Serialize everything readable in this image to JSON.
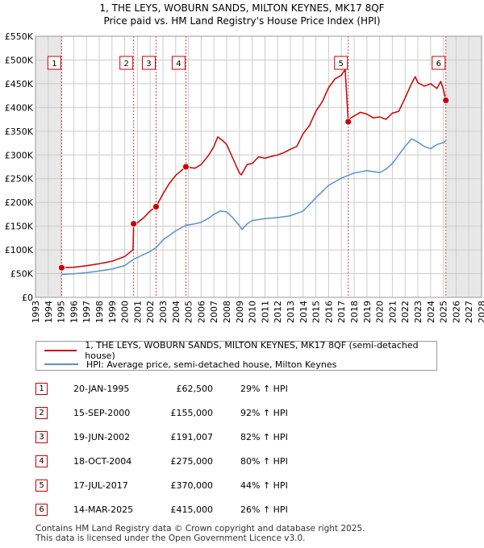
{
  "title_line1": "1, THE LEYS, WOBURN SANDS, MILTON KEYNES, MK17 8QF",
  "title_line2": "Price paid vs. HM Land Registry's House Price Index (HPI)",
  "chart_data": {
    "type": "line",
    "title": "Price paid vs. HM Land Registry's House Price Index (HPI)",
    "xlabel": "",
    "ylabel": "",
    "xlim": [
      1993,
      2028
    ],
    "ylim": [
      0,
      550000
    ],
    "y_ticks": [
      0,
      50000,
      100000,
      150000,
      200000,
      250000,
      300000,
      350000,
      400000,
      450000,
      500000,
      550000
    ],
    "y_tick_labels": [
      "£0",
      "£50K",
      "£100K",
      "£150K",
      "£200K",
      "£250K",
      "£300K",
      "£350K",
      "£400K",
      "£450K",
      "£500K",
      "£550K"
    ],
    "x_ticks": [
      1993,
      1994,
      1995,
      1996,
      1997,
      1998,
      1999,
      2000,
      2001,
      2002,
      2003,
      2004,
      2005,
      2006,
      2007,
      2008,
      2009,
      2010,
      2011,
      2012,
      2013,
      2014,
      2015,
      2016,
      2017,
      2018,
      2019,
      2020,
      2021,
      2022,
      2023,
      2024,
      2025,
      2026,
      2027,
      2028
    ],
    "grid": true,
    "shaded_ranges": [
      [
        1993,
        1995.05
      ],
      [
        2025.2,
        2028
      ]
    ],
    "series": [
      {
        "name": "1, THE LEYS, WOBURN SANDS, MILTON KEYNES, MK17 8QF (semi-detached house)",
        "color": "#cc0000",
        "x": [
          1995.05,
          1996,
          1997,
          1998,
          1999,
          2000,
          2000.65,
          2000.7,
          2001,
          2001.5,
          2002,
          2002.46,
          2003,
          2003.5,
          2004,
          2004.8,
          2005.5,
          2006,
          2006.6,
          2007,
          2007.3,
          2007.7,
          2008,
          2008.5,
          2009,
          2009.15,
          2009.6,
          2010,
          2010.5,
          2011,
          2011.5,
          2012,
          2012.5,
          2013,
          2013.5,
          2014,
          2014.5,
          2015,
          2015.5,
          2016,
          2016.5,
          2017,
          2017.3,
          2017.54,
          2017.7,
          2018,
          2018.5,
          2019,
          2019.5,
          2020,
          2020.5,
          2021,
          2021.5,
          2022,
          2022.5,
          2022.8,
          2023,
          2023.5,
          2024,
          2024.5,
          2024.8,
          2025,
          2025.2
        ],
        "y": [
          62500,
          63500,
          66500,
          71000,
          76000,
          86000,
          100000,
          155000,
          157000,
          168000,
          182000,
          191007,
          218000,
          240000,
          257000,
          275000,
          272000,
          280000,
          300000,
          318000,
          338000,
          330000,
          322000,
          292000,
          262000,
          258000,
          280000,
          282000,
          296000,
          293000,
          297000,
          300000,
          305000,
          312000,
          318000,
          345000,
          362000,
          392000,
          412000,
          442000,
          460000,
          468000,
          480000,
          370000,
          377000,
          382000,
          390000,
          386000,
          378000,
          380000,
          375000,
          388000,
          392000,
          420000,
          450000,
          465000,
          452000,
          445000,
          450000,
          440000,
          455000,
          438000,
          415000
        ]
      },
      {
        "name": "HPI: Average price, semi-detached house, Milton Keynes",
        "color": "#5b8fd0",
        "x": [
          1995.05,
          1996,
          1997,
          1998,
          1999,
          2000,
          2000.7,
          2001,
          2002,
          2002.46,
          2003,
          2004,
          2004.8,
          2005.5,
          2006,
          2006.6,
          2007,
          2007.5,
          2008,
          2008.5,
          2009,
          2009.2,
          2009.6,
          2010,
          2011,
          2012,
          2013,
          2014,
          2015,
          2016,
          2017,
          2017.54,
          2018,
          2019,
          2020,
          2020.5,
          2021,
          2021.5,
          2022,
          2022.5,
          2023,
          2023.5,
          2024,
          2024.5,
          2025,
          2025.2
        ],
        "y": [
          48500,
          49500,
          52000,
          55500,
          59500,
          67000,
          80500,
          84000,
          97000,
          104500,
          121000,
          140000,
          152000,
          155000,
          158000,
          167000,
          175000,
          182000,
          180000,
          167000,
          151000,
          143000,
          155000,
          162000,
          166000,
          168000,
          172000,
          182000,
          210000,
          236000,
          251000,
          257000,
          262000,
          267000,
          263000,
          270000,
          282000,
          300000,
          318000,
          334000,
          327000,
          318000,
          313000,
          322000,
          326000,
          330000
        ]
      }
    ],
    "sales": [
      {
        "id": "1",
        "date": "20-JAN-1995",
        "x": 1995.05,
        "price": 62500,
        "price_label": "£62,500",
        "hpi": "29% ↑ HPI"
      },
      {
        "id": "2",
        "date": "15-SEP-2000",
        "x": 2000.7,
        "price": 155000,
        "price_label": "£155,000",
        "hpi": "92% ↑ HPI"
      },
      {
        "id": "3",
        "date": "19-JUN-2002",
        "x": 2002.46,
        "price": 191007,
        "price_label": "£191,007",
        "hpi": "82% ↑ HPI"
      },
      {
        "id": "4",
        "date": "18-OCT-2004",
        "x": 2004.8,
        "price": 275000,
        "price_label": "£275,000",
        "hpi": "80% ↑ HPI"
      },
      {
        "id": "5",
        "date": "17-JUL-2017",
        "x": 2017.54,
        "price": 370000,
        "price_label": "£370,000",
        "hpi": "44% ↑ HPI"
      },
      {
        "id": "6",
        "date": "14-MAR-2025",
        "x": 2025.2,
        "price": 415000,
        "price_label": "£415,000",
        "hpi": "26% ↑ HPI"
      }
    ]
  },
  "legend": {
    "property_label": "1, THE LEYS, WOBURN SANDS, MILTON KEYNES, MK17 8QF (semi-detached house)",
    "hpi_label": "HPI: Average price, semi-detached house, Milton Keynes",
    "property_color": "#cc0000",
    "hpi_color": "#5b8fd0"
  },
  "footer_line1": "Contains HM Land Registry data © Crown copyright and database right 2025.",
  "footer_line2": "This data is licensed under the Open Government Licence v3.0."
}
